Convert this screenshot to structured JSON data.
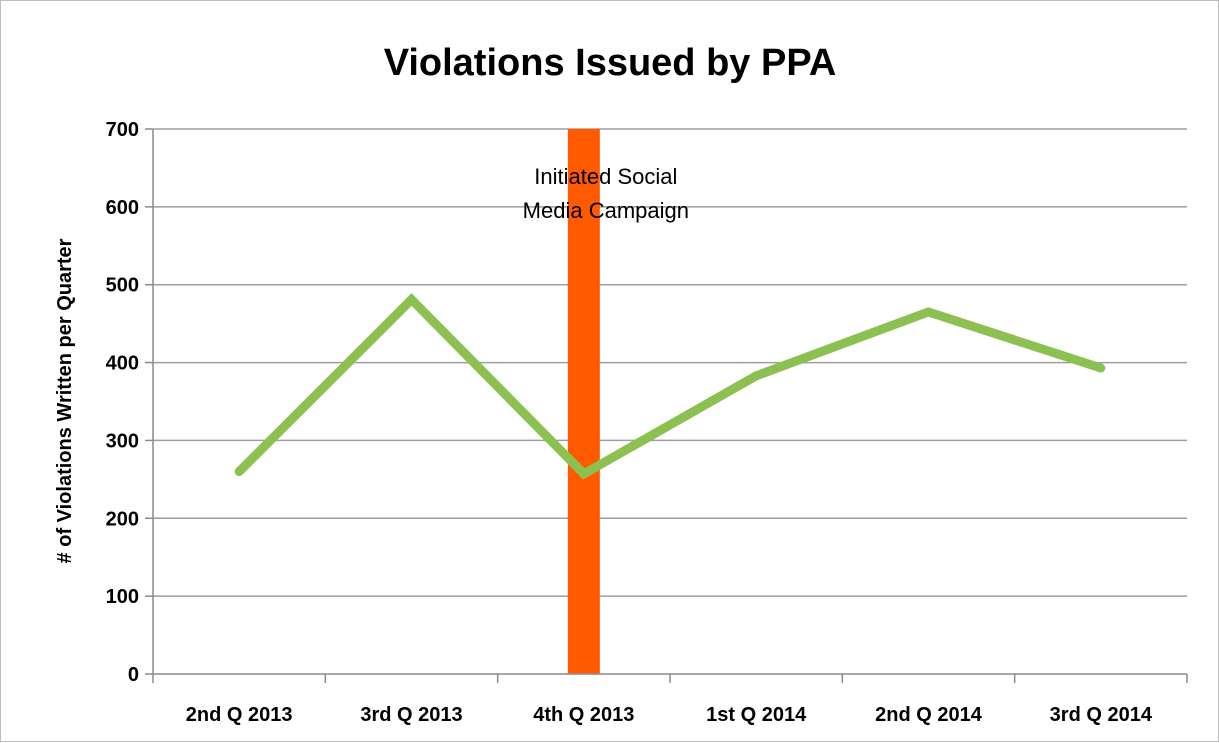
{
  "chart_data": {
    "type": "line",
    "title": "Violations Issued by PPA",
    "xlabel": "",
    "ylabel": "# of Violations Written per Quarter",
    "categories": [
      "2nd Q 2013",
      "3rd Q 2013",
      "4th Q 2013",
      "1st Q 2014",
      "2nd Q 2014",
      "3rd Q 2014"
    ],
    "series": [
      {
        "values": [
          260,
          481,
          257,
          383,
          465,
          393
        ],
        "color": "#8cc152"
      }
    ],
    "ylim": [
      0,
      700
    ],
    "yticks": [
      0,
      100,
      200,
      300,
      400,
      500,
      600,
      700
    ],
    "grid": true,
    "annotation": {
      "category": "4th Q 2013",
      "lines": [
        "Initiated Social",
        "Media Campaign"
      ],
      "color": "#ff5a00"
    }
  }
}
